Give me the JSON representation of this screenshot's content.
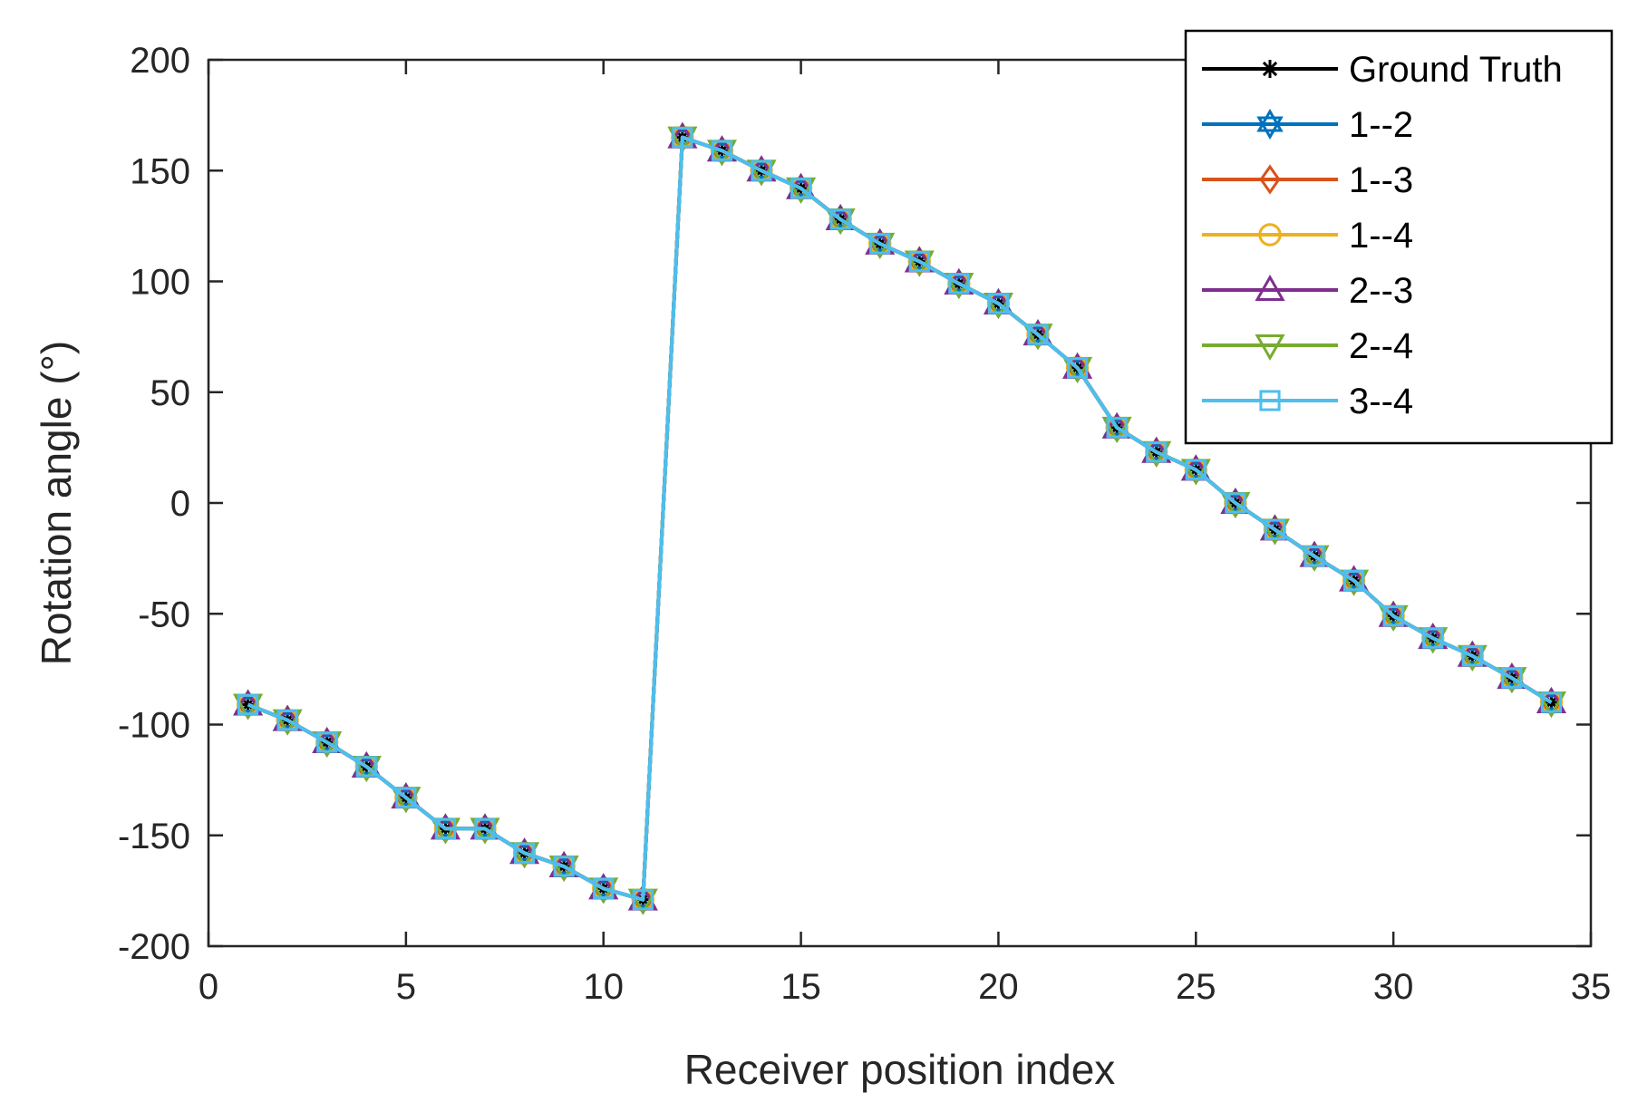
{
  "chart_data": {
    "type": "line",
    "title": "",
    "xlabel": "Receiver position index",
    "ylabel": "Rotation angle (°)",
    "xlim": [
      0,
      35
    ],
    "ylim": [
      -200,
      200
    ],
    "xticks": [
      0,
      5,
      10,
      15,
      20,
      25,
      30,
      35
    ],
    "yticks": [
      -200,
      -150,
      -100,
      -50,
      0,
      50,
      100,
      150,
      200
    ],
    "xtick_labels": [
      "0",
      "5",
      "10",
      "15",
      "20",
      "25",
      "30",
      "35"
    ],
    "ytick_labels": [
      "-200",
      "-150",
      "-100",
      "-50",
      "0",
      "50",
      "100",
      "150",
      "200"
    ],
    "grid": false,
    "legend_position": "top-right",
    "x": [
      1,
      2,
      3,
      4,
      5,
      6,
      7,
      8,
      9,
      10,
      11,
      12,
      13,
      14,
      15,
      16,
      17,
      18,
      19,
      20,
      21,
      22,
      23,
      24,
      25,
      26,
      27,
      28,
      29,
      30,
      31,
      32,
      33,
      34
    ],
    "series": [
      {
        "name": "Ground Truth",
        "color": "#000000",
        "marker": "asterisk",
        "values": [
          -91,
          -98,
          -108,
          -119,
          -133,
          -147,
          -147,
          -158,
          -164,
          -174,
          -179,
          165,
          159,
          150,
          142,
          128,
          117,
          109,
          99,
          90,
          76,
          61,
          34,
          23,
          15,
          0,
          -12,
          -24,
          -35,
          -51,
          -61,
          -69,
          -79,
          -90
        ]
      },
      {
        "name": "1--2",
        "color": "#0072BD",
        "marker": "hexagram",
        "values": [
          -91,
          -98,
          -108,
          -119,
          -133,
          -147,
          -147,
          -158,
          -164,
          -174,
          -179,
          165,
          159,
          150,
          142,
          128,
          117,
          109,
          99,
          90,
          76,
          61,
          34,
          23,
          15,
          0,
          -12,
          -24,
          -35,
          -51,
          -61,
          -69,
          -79,
          -90
        ]
      },
      {
        "name": "1--3",
        "color": "#D95319",
        "marker": "diamond",
        "values": [
          -91,
          -98,
          -108,
          -119,
          -133,
          -147,
          -147,
          -158,
          -164,
          -174,
          -179,
          165,
          159,
          150,
          142,
          128,
          117,
          109,
          99,
          90,
          76,
          61,
          34,
          23,
          15,
          0,
          -12,
          -24,
          -35,
          -51,
          -61,
          -69,
          -79,
          -90
        ]
      },
      {
        "name": "1--4",
        "color": "#EDB120",
        "marker": "circle",
        "values": [
          -91,
          -98,
          -108,
          -119,
          -133,
          -147,
          -147,
          -158,
          -164,
          -174,
          -179,
          165,
          159,
          150,
          142,
          128,
          117,
          109,
          99,
          90,
          76,
          61,
          34,
          23,
          15,
          0,
          -12,
          -24,
          -35,
          -51,
          -61,
          -69,
          -79,
          -90
        ]
      },
      {
        "name": "2--3",
        "color": "#7E2F8E",
        "marker": "triangle-up",
        "values": [
          -91,
          -98,
          -108,
          -119,
          -133,
          -147,
          -147,
          -158,
          -164,
          -174,
          -179,
          165,
          159,
          150,
          142,
          128,
          117,
          109,
          99,
          90,
          76,
          61,
          34,
          23,
          15,
          0,
          -12,
          -24,
          -35,
          -51,
          -61,
          -69,
          -79,
          -90
        ]
      },
      {
        "name": "2--4",
        "color": "#77AC30",
        "marker": "triangle-down",
        "values": [
          -91,
          -98,
          -108,
          -119,
          -133,
          -147,
          -147,
          -158,
          -164,
          -174,
          -179,
          165,
          159,
          150,
          142,
          128,
          117,
          109,
          99,
          90,
          76,
          61,
          34,
          23,
          15,
          0,
          -12,
          -24,
          -35,
          -51,
          -61,
          -69,
          -79,
          -90
        ]
      },
      {
        "name": "3--4",
        "color": "#4DBEEE",
        "marker": "square",
        "values": [
          -91,
          -98,
          -108,
          -119,
          -133,
          -147,
          -147,
          -158,
          -164,
          -174,
          -179,
          165,
          159,
          150,
          142,
          128,
          117,
          109,
          99,
          90,
          76,
          61,
          34,
          23,
          15,
          0,
          -12,
          -24,
          -35,
          -51,
          -61,
          -69,
          -79,
          -90
        ]
      }
    ]
  }
}
